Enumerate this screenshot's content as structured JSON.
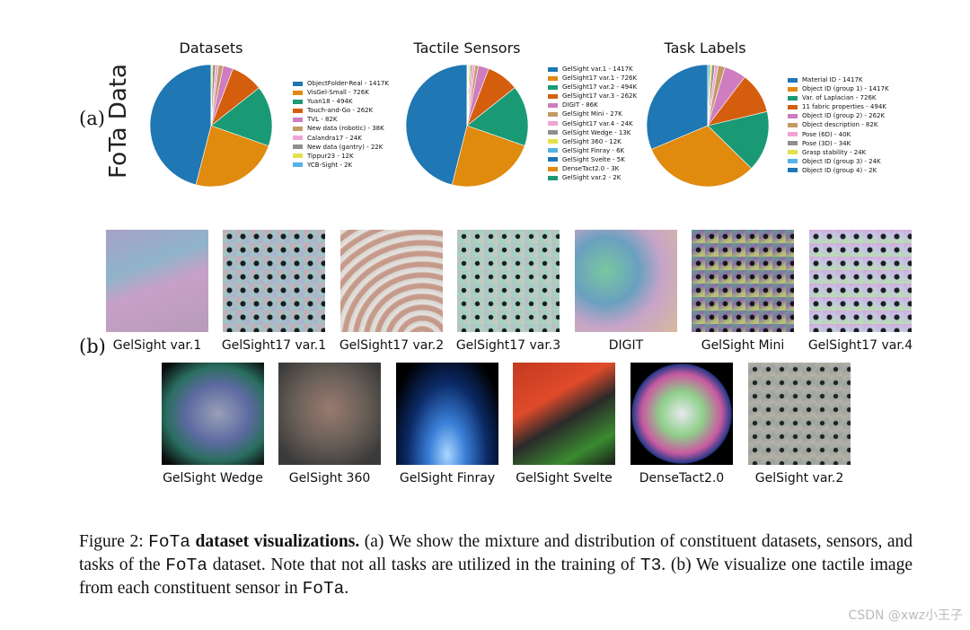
{
  "panel_a": {
    "label": "(a)",
    "y_title": "FoTa Data",
    "charts": [
      {
        "title": "Datasets",
        "chart_data": {
          "type": "pie",
          "title": "Datasets",
          "slices": [
            {
              "label": "ObjectFolder-Real - 1417K",
              "value": 1417,
              "color": "#1f77b4"
            },
            {
              "label": "VisGel-Small - 726K",
              "value": 726,
              "color": "#e08a0e"
            },
            {
              "label": "Yuan18 - 494K",
              "value": 494,
              "color": "#1a9a74"
            },
            {
              "label": "Touch-and-Go - 262K",
              "value": 262,
              "color": "#d45e0e"
            },
            {
              "label": "TVL - 82K",
              "value": 82,
              "color": "#cf7cc1"
            },
            {
              "label": "New data (robotic) - 38K",
              "value": 38,
              "color": "#c39a64"
            },
            {
              "label": "Calandra17 - 24K",
              "value": 24,
              "color": "#f2a3d3"
            },
            {
              "label": "New data (gantry) - 22K",
              "value": 22,
              "color": "#8f8f8f"
            },
            {
              "label": "Tippur23 - 12K",
              "value": 12,
              "color": "#e3e14a"
            },
            {
              "label": "YCB-Sight - 2K",
              "value": 2,
              "color": "#56b1e6"
            }
          ]
        }
      },
      {
        "title": "Tactile Sensors",
        "chart_data": {
          "type": "pie",
          "title": "Tactile Sensors",
          "slices": [
            {
              "label": "GelSight var.1 - 1417K",
              "value": 1417,
              "color": "#1f77b4"
            },
            {
              "label": "GelSight17 var.1 - 726K",
              "value": 726,
              "color": "#e08a0e"
            },
            {
              "label": "GelSight17 var.2 - 494K",
              "value": 494,
              "color": "#1a9a74"
            },
            {
              "label": "GelSight17 var.3 - 262K",
              "value": 262,
              "color": "#d45e0e"
            },
            {
              "label": "DIGIT - 86K",
              "value": 86,
              "color": "#cf7cc1"
            },
            {
              "label": "GelSight Mini - 27K",
              "value": 27,
              "color": "#c39a64"
            },
            {
              "label": "GelSight17 var.4 - 24K",
              "value": 24,
              "color": "#f2a3d3"
            },
            {
              "label": "GelSight Wedge - 13K",
              "value": 13,
              "color": "#8f8f8f"
            },
            {
              "label": "GelSight 360 - 12K",
              "value": 12,
              "color": "#e3e14a"
            },
            {
              "label": "GelSight Finray - 6K",
              "value": 6,
              "color": "#56b1e6"
            },
            {
              "label": "GelSight Svelte - 5K",
              "value": 5,
              "color": "#1f77b4"
            },
            {
              "label": "DenseTact2.0 - 3K",
              "value": 3,
              "color": "#e08a0e"
            },
            {
              "label": "GelSight var.2 - 2K",
              "value": 2,
              "color": "#1a9a74"
            }
          ]
        }
      },
      {
        "title": "Task Labels",
        "chart_data": {
          "type": "pie",
          "title": "Task Labels",
          "slices": [
            {
              "label": "Material ID - 1417K",
              "value": 1417,
              "color": "#1f77b4"
            },
            {
              "label": "Object ID (group 1) - 1417K",
              "value": 1417,
              "color": "#e08a0e"
            },
            {
              "label": "Var. of Laplacian - 726K",
              "value": 726,
              "color": "#1a9a74"
            },
            {
              "label": "11 fabric properties - 494K",
              "value": 494,
              "color": "#d45e0e"
            },
            {
              "label": "Object ID (group 2) - 262K",
              "value": 262,
              "color": "#cf7cc1"
            },
            {
              "label": "Object description - 82K",
              "value": 82,
              "color": "#c39a64"
            },
            {
              "label": "Pose (6D) - 40K",
              "value": 40,
              "color": "#f2a3d3"
            },
            {
              "label": "Pose (3D) - 34K",
              "value": 34,
              "color": "#8f8f8f"
            },
            {
              "label": "Grasp stability - 24K",
              "value": 24,
              "color": "#e3e14a"
            },
            {
              "label": "Object ID (group 3) - 24K",
              "value": 24,
              "color": "#56b1e6"
            },
            {
              "label": "Object ID (group 4) - 2K",
              "value": 2,
              "color": "#1f77b4"
            }
          ]
        }
      }
    ]
  },
  "panel_b": {
    "label": "(b)",
    "row1": [
      "GelSight var.1",
      "GelSight17 var.1",
      "GelSight17 var.2",
      "GelSight17 var.3",
      "DIGIT",
      "GelSight Mini",
      "GelSight17 var.4"
    ],
    "row2": [
      "GelSight Wedge",
      "GelSight 360",
      "GelSight Finray",
      "GelSight Svelte",
      "DenseTact2.0",
      "GelSight var.2"
    ]
  },
  "caption": {
    "fig": "Figure 2:",
    "fota": "FoTa",
    "bold": "dataset visualizations.",
    "text1": "(a) We show the mixture and distribution of constituent datasets, sensors, and tasks of the",
    "fota2": "FoTa",
    "text2": "dataset. Note that not all tasks are utilized in the training of",
    "t3": "T3",
    "text3": ". (b) We visualize one tactile image from each constituent sensor in",
    "fota3": "FoTa",
    "text4": "."
  },
  "watermark": "CSDN @xwz小王子"
}
